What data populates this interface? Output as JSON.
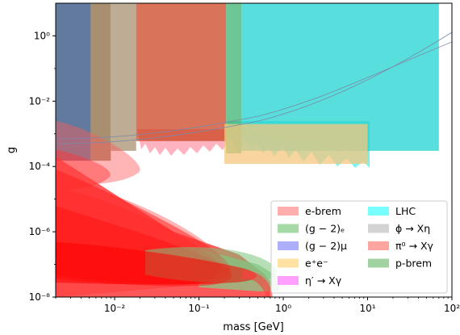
{
  "chart_data": {
    "type": "area",
    "xlabel": "mass [GeV]",
    "ylabel": "g",
    "x_scale": "log",
    "y_scale": "log",
    "xlim": [
      0.002,
      100
    ],
    "ylim": [
      1e-08,
      10
    ],
    "x_ticks": [
      {
        "value": 0.01,
        "label": "10⁻²"
      },
      {
        "value": 0.1,
        "label": "10⁻¹"
      },
      {
        "value": 1,
        "label": "10⁰"
      },
      {
        "value": 10,
        "label": "10¹"
      },
      {
        "value": 100,
        "label": "10²"
      }
    ],
    "y_ticks": [
      {
        "value": 1e-08,
        "label": "10⁻⁸"
      },
      {
        "value": 1e-06,
        "label": "10⁻⁶"
      },
      {
        "value": 0.0001,
        "label": "10⁻⁴"
      },
      {
        "value": 0.01,
        "label": "10⁻²"
      },
      {
        "value": 1,
        "label": "10⁰"
      }
    ],
    "grid": false,
    "legend_position": "bottom-right",
    "legend": [
      {
        "label": "e-brem",
        "color": "#ff9a9a"
      },
      {
        "label": "(g − 2)ₑ",
        "color": "#8fcf8f"
      },
      {
        "label": "(g − 2)μ",
        "color": "#9a9aff"
      },
      {
        "label": "e⁺e⁻",
        "color": "#ffd98a"
      },
      {
        "label": "η′ → Xγ",
        "color": "#ff88ff"
      },
      {
        "label": "LHC",
        "color": "#55ffff"
      },
      {
        "label": "ϕ → Xη",
        "color": "#c8c8c8"
      },
      {
        "label": "π⁰ → Xγ",
        "color": "#ff8e88"
      },
      {
        "label": "p-brem",
        "color": "#88c888"
      }
    ],
    "series": [
      {
        "name": "(g − 2)μ",
        "color": "#2c4e7c",
        "x": [
          0.002,
          0.0052
        ],
        "y_top": [
          10,
          10
        ],
        "y_bottom": [
          0.00015,
          0.00015
        ]
      },
      {
        "name": "η′ → Xγ",
        "color": "#8a6a40",
        "x": [
          0.0052,
          0.009
        ],
        "y_top": [
          10,
          10
        ],
        "y_bottom": [
          0.00015,
          0.00015
        ]
      },
      {
        "name": "ϕ → Xη",
        "color": "#a89070",
        "x": [
          0.009,
          0.018
        ],
        "y_top": [
          10,
          10
        ],
        "y_bottom": [
          0.0003,
          0.0003
        ]
      },
      {
        "name": "e-brem",
        "color": "#cc4422",
        "x": [
          0.018,
          0.21
        ],
        "y_top": [
          10,
          10
        ],
        "y_bottom": [
          0.0006,
          0.0006
        ]
      },
      {
        "name": "(g − 2)ₑ",
        "color": "#3cb371",
        "x": [
          0.21,
          0.32
        ],
        "y_top": [
          10,
          10
        ],
        "y_bottom": [
          0.00025,
          0.00025
        ]
      },
      {
        "name": "LHC",
        "color": "#22d3d3",
        "x": [
          0.32,
          70
        ],
        "y_top": [
          10,
          10
        ],
        "y_bottom": [
          0.0003,
          0.0003
        ]
      },
      {
        "name": "e⁺e⁻",
        "color": "#f5c77e",
        "x": [
          0.2,
          10
        ],
        "y_top": [
          0.002,
          0.002
        ],
        "y_bottom": [
          0.00012,
          0.00012
        ]
      },
      {
        "name": "π⁰ → Xγ",
        "color": "#ff2020",
        "x": [
          0.002,
          0.05,
          0.3,
          0.6,
          0.7
        ],
        "y_top": [
          0.0002,
          1e-06,
          2e-07,
          5e-08,
          3e-08
        ],
        "y_bottom": [
          1e-08,
          1e-08,
          1e-08,
          1e-08,
          1e-08
        ]
      },
      {
        "name": "p-brem",
        "color": "#88c888",
        "x": [
          0.1,
          0.5,
          0.9
        ],
        "y_top": [
          3e-07,
          1e-07,
          4e-08
        ],
        "y_bottom": [
          2e-08,
          1.5e-08,
          1.5e-08
        ]
      }
    ]
  }
}
